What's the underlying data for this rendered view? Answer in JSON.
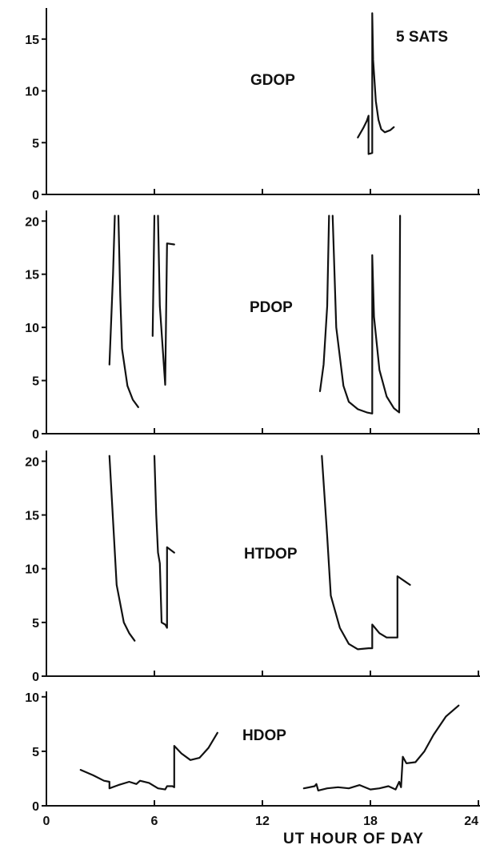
{
  "chart_data": {
    "type": "line",
    "annotation": "5 SATS",
    "xlabel": "UT HOUR OF DAY",
    "x_ticks": [
      0,
      6,
      12,
      18,
      24
    ],
    "x_tick_labels": [
      "0",
      "6",
      "12",
      "18",
      "24"
    ],
    "xlim": [
      0,
      24
    ],
    "panels": [
      {
        "label": "GDOP",
        "ylim": [
          0,
          18
        ],
        "y_ticks": [
          0,
          5,
          10,
          15
        ],
        "y_tick_labels": [
          "0",
          "5",
          "10",
          "15"
        ],
        "segments": [
          [
            [
              17.3,
              5.5
            ],
            [
              17.6,
              6.4
            ],
            [
              17.8,
              7.1
            ],
            [
              17.9,
              7.6
            ],
            [
              17.9,
              3.9
            ],
            [
              18.1,
              4.0
            ],
            [
              18.1,
              17.5
            ],
            [
              18.15,
              13
            ],
            [
              18.3,
              9
            ],
            [
              18.45,
              7.2
            ],
            [
              18.6,
              6.3
            ],
            [
              18.8,
              6.0
            ],
            [
              19.1,
              6.2
            ],
            [
              19.3,
              6.5
            ]
          ]
        ]
      },
      {
        "label": "PDOP",
        "ylim": [
          0,
          21
        ],
        "y_ticks": [
          0,
          5,
          10,
          15,
          20
        ],
        "y_tick_labels": [
          "0",
          "5",
          "10",
          "15",
          "20"
        ],
        "segments": [
          [
            [
              3.5,
              6.5
            ],
            [
              3.7,
              15
            ],
            [
              3.8,
              20.5
            ]
          ],
          [
            [
              4.0,
              20.5
            ],
            [
              4.1,
              13
            ],
            [
              4.2,
              8
            ],
            [
              4.5,
              4.5
            ],
            [
              4.8,
              3.2
            ],
            [
              5.1,
              2.5
            ]
          ],
          [
            [
              5.9,
              9.2
            ],
            [
              6.0,
              20.5
            ]
          ],
          [
            [
              6.2,
              20.5
            ],
            [
              6.3,
              12
            ],
            [
              6.6,
              4.6
            ],
            [
              6.7,
              17.9
            ],
            [
              7.1,
              17.8
            ]
          ],
          [
            [
              15.2,
              4.0
            ],
            [
              15.4,
              6.5
            ],
            [
              15.6,
              12
            ],
            [
              15.7,
              20.5
            ]
          ],
          [
            [
              15.9,
              20.5
            ],
            [
              16.1,
              10
            ],
            [
              16.5,
              4.5
            ],
            [
              16.8,
              3.0
            ],
            [
              17.3,
              2.3
            ],
            [
              17.8,
              2.0
            ],
            [
              18.1,
              1.9
            ],
            [
              18.1,
              16.8
            ],
            [
              18.2,
              11
            ],
            [
              18.5,
              6
            ],
            [
              18.9,
              3.5
            ],
            [
              19.3,
              2.4
            ],
            [
              19.6,
              2.0
            ],
            [
              19.65,
              20.5
            ]
          ]
        ]
      },
      {
        "label": "HTDOP",
        "ylim": [
          0,
          21
        ],
        "y_ticks": [
          0,
          5,
          10,
          15,
          20
        ],
        "y_tick_labels": [
          "0",
          "5",
          "10",
          "15",
          "20"
        ],
        "segments": [
          [
            [
              3.5,
              20.5
            ],
            [
              3.7,
              14.5
            ],
            [
              3.9,
              8.5
            ],
            [
              4.3,
              5.0
            ],
            [
              4.6,
              4.0
            ],
            [
              4.9,
              3.3
            ]
          ],
          [
            [
              6.0,
              20.5
            ],
            [
              6.1,
              15
            ],
            [
              6.2,
              11.5
            ],
            [
              6.3,
              10.5
            ],
            [
              6.4,
              5.0
            ],
            [
              6.6,
              4.8
            ],
            [
              6.7,
              4.5
            ],
            [
              6.7,
              12.0
            ],
            [
              7.1,
              11.5
            ]
          ],
          [
            [
              15.3,
              20.5
            ],
            [
              15.6,
              13
            ],
            [
              15.8,
              7.5
            ],
            [
              16.3,
              4.5
            ],
            [
              16.8,
              3.0
            ],
            [
              17.3,
              2.5
            ],
            [
              17.9,
              2.6
            ],
            [
              18.1,
              2.6
            ],
            [
              18.1,
              4.8
            ],
            [
              18.5,
              4.0
            ],
            [
              18.9,
              3.6
            ],
            [
              19.5,
              3.6
            ],
            [
              19.5,
              9.3
            ],
            [
              20.2,
              8.5
            ]
          ]
        ]
      },
      {
        "label": "HDOP",
        "ylim": [
          0,
          10.5
        ],
        "y_ticks": [
          0,
          5,
          10
        ],
        "y_tick_labels": [
          "0",
          "5",
          "10"
        ],
        "segments": [
          [
            [
              1.9,
              3.3
            ],
            [
              2.6,
              2.8
            ],
            [
              3.2,
              2.3
            ],
            [
              3.5,
              2.2
            ],
            [
              3.5,
              1.6
            ],
            [
              4.0,
              1.9
            ],
            [
              4.6,
              2.2
            ],
            [
              5.0,
              2.0
            ],
            [
              5.2,
              2.3
            ],
            [
              5.7,
              2.1
            ],
            [
              6.2,
              1.6
            ],
            [
              6.6,
              1.5
            ],
            [
              6.7,
              1.8
            ],
            [
              7.0,
              1.8
            ],
            [
              7.1,
              1.7
            ],
            [
              7.1,
              5.5
            ],
            [
              7.5,
              4.8
            ],
            [
              8.0,
              4.2
            ],
            [
              8.5,
              4.4
            ],
            [
              9.0,
              5.3
            ],
            [
              9.5,
              6.7
            ]
          ],
          [
            [
              14.3,
              1.6
            ],
            [
              14.9,
              1.8
            ],
            [
              15.0,
              2.0
            ],
            [
              15.1,
              1.4
            ],
            [
              15.6,
              1.6
            ],
            [
              16.2,
              1.7
            ],
            [
              16.8,
              1.6
            ],
            [
              17.4,
              1.9
            ],
            [
              18.0,
              1.5
            ],
            [
              18.5,
              1.6
            ],
            [
              19.0,
              1.8
            ],
            [
              19.4,
              1.5
            ],
            [
              19.6,
              2.2
            ],
            [
              19.7,
              1.7
            ],
            [
              19.8,
              4.5
            ],
            [
              20.0,
              3.9
            ],
            [
              20.5,
              4.0
            ],
            [
              21.0,
              5.0
            ],
            [
              21.5,
              6.5
            ],
            [
              22.2,
              8.2
            ],
            [
              22.9,
              9.2
            ]
          ]
        ]
      }
    ]
  }
}
